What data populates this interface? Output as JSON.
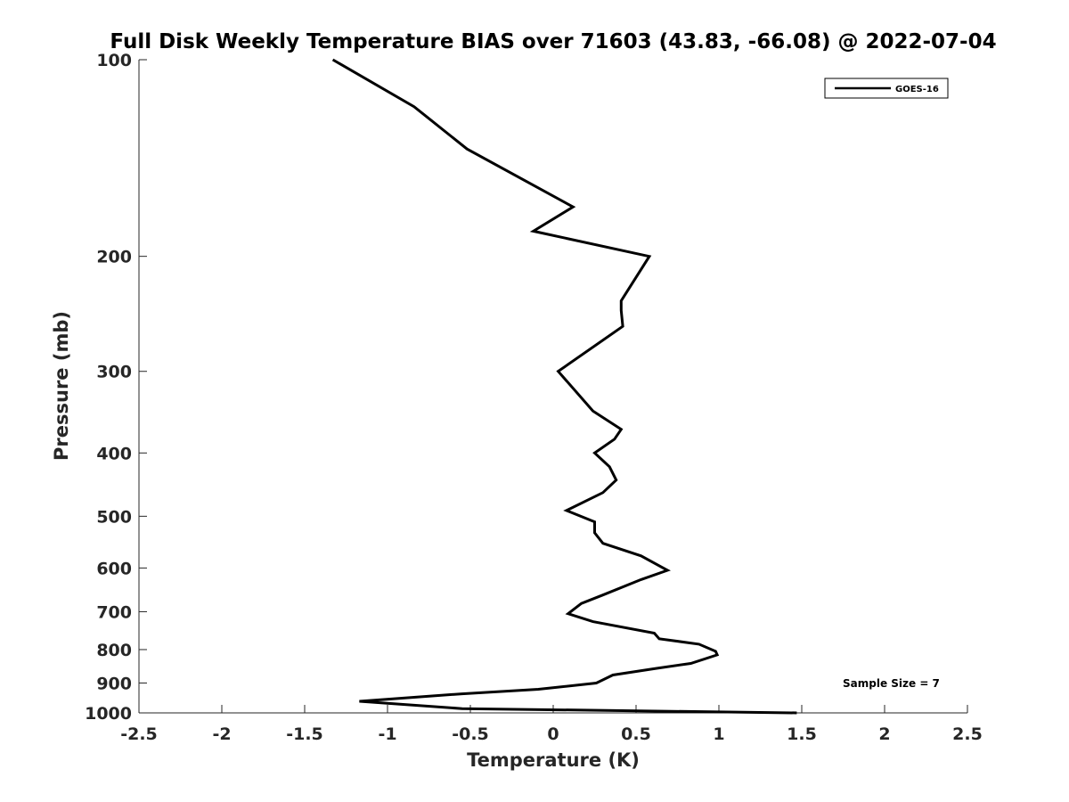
{
  "chart_data": {
    "type": "line",
    "title": "Full Disk Weekly Temperature BIAS over 71603 (43.83, -66.08) @ 2022-07-04",
    "xlabel": "Temperature (K)",
    "ylabel": "Pressure (mb)",
    "xlim": [
      -2.5,
      2.5
    ],
    "ylim": [
      1000,
      100
    ],
    "y_scale": "log",
    "grid": false,
    "x_ticks": [
      "-2.5",
      "-2",
      "-1.5",
      "-1",
      "-0.5",
      "0",
      "0.5",
      "1",
      "1.5",
      "2",
      "2.5"
    ],
    "x_tick_values": [
      -2.5,
      -2,
      -1.5,
      -1,
      -0.5,
      0,
      0.5,
      1,
      1.5,
      2,
      2.5
    ],
    "y_ticks": [
      "100",
      "200",
      "300",
      "400",
      "500",
      "600",
      "700",
      "800",
      "900",
      "1000"
    ],
    "y_tick_values": [
      100,
      200,
      300,
      400,
      500,
      600,
      700,
      800,
      900,
      1000
    ],
    "legend": {
      "position": "top-right",
      "entries": [
        "GOES-16"
      ]
    },
    "annotation": "Sample Size = 7",
    "series": [
      {
        "name": "GOES-16",
        "color": "#000000",
        "x": [
          -1.33,
          -0.84,
          -0.52,
          0.12,
          -0.12,
          0.58,
          0.41,
          0.41,
          0.42,
          0.03,
          0.24,
          0.41,
          0.37,
          0.25,
          0.34,
          0.38,
          0.3,
          0.08,
          0.25,
          0.25,
          0.3,
          0.53,
          0.69,
          0.53,
          0.3,
          0.17,
          0.09,
          0.24,
          0.61,
          0.64,
          0.88,
          0.98,
          0.99,
          0.83,
          0.62,
          0.36,
          0.26,
          -0.09,
          -0.55,
          -1.17,
          -0.55,
          1.47
        ],
        "y": [
          100,
          118,
          137,
          168,
          183,
          200,
          234,
          242,
          256,
          300,
          345,
          368,
          381,
          400,
          420,
          440,
          460,
          490,
          510,
          530,
          550,
          575,
          605,
          625,
          660,
          680,
          705,
          725,
          755,
          770,
          785,
          805,
          815,
          840,
          855,
          875,
          900,
          920,
          935,
          960,
          985,
          1000
        ]
      }
    ]
  }
}
